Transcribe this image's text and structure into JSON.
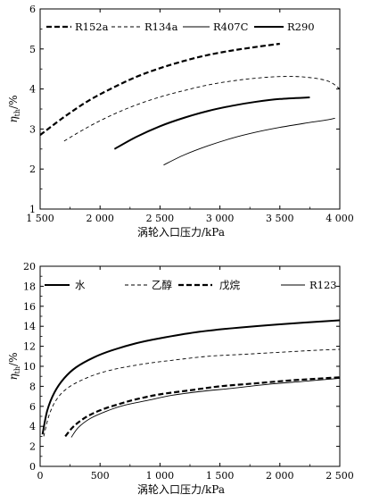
{
  "chart_data": [
    {
      "type": "line",
      "xlabel": "涡轮入口压力/kPa",
      "ylabel": {
        "symbol": "η",
        "subscript": "th",
        "unit": "/%"
      },
      "xlim": [
        1500,
        4000
      ],
      "ylim": [
        1,
        6
      ],
      "xticks": [
        1500,
        2000,
        2500,
        3000,
        3500,
        4000
      ],
      "xtick_labels": [
        "1 500",
        "2 000",
        "2 500",
        "3 000",
        "3 500",
        "4 000"
      ],
      "yticks": [
        1,
        2,
        3,
        4,
        5,
        6
      ],
      "ytick_labels": [
        "1",
        "2",
        "3",
        "4",
        "5",
        "6"
      ],
      "legend_position": "top",
      "series": [
        {
          "name": "R152a",
          "style": "dashed-bold",
          "x": [
            1500,
            1700,
            1900,
            2100,
            2300,
            2500,
            2700,
            2900,
            3100,
            3300,
            3500
          ],
          "y": [
            2.85,
            3.3,
            3.7,
            4.02,
            4.3,
            4.52,
            4.7,
            4.85,
            4.96,
            5.05,
            5.13
          ]
        },
        {
          "name": "R134a",
          "style": "dashed-thin",
          "x": [
            1700,
            1900,
            2100,
            2300,
            2500,
            2700,
            2900,
            3100,
            3300,
            3500,
            3700,
            3900,
            4000
          ],
          "y": [
            2.7,
            3.05,
            3.35,
            3.6,
            3.8,
            3.96,
            4.1,
            4.2,
            4.27,
            4.31,
            4.3,
            4.2,
            4.0
          ]
        },
        {
          "name": "R407C",
          "style": "solid-thin",
          "x": [
            2530,
            2700,
            2900,
            3100,
            3300,
            3500,
            3700,
            3900,
            3960
          ],
          "y": [
            2.1,
            2.35,
            2.58,
            2.77,
            2.92,
            3.04,
            3.14,
            3.23,
            3.27
          ]
        },
        {
          "name": "R290",
          "style": "solid-bold",
          "x": [
            2120,
            2300,
            2500,
            2700,
            2900,
            3100,
            3300,
            3500,
            3750
          ],
          "y": [
            2.5,
            2.8,
            3.07,
            3.28,
            3.45,
            3.58,
            3.68,
            3.75,
            3.79
          ]
        }
      ]
    },
    {
      "type": "line",
      "xlabel": "涡轮入口压力/kPa",
      "ylabel": {
        "symbol": "η",
        "subscript": "th",
        "unit": "/%"
      },
      "xlim": [
        0,
        2500
      ],
      "ylim": [
        0,
        20
      ],
      "xticks": [
        0,
        500,
        1000,
        1500,
        2000,
        2500
      ],
      "xtick_labels": [
        "0",
        "500",
        "1 000",
        "1 500",
        "2 000",
        "2 500"
      ],
      "yticks": [
        0,
        2,
        4,
        6,
        8,
        10,
        12,
        14,
        16,
        18,
        20
      ],
      "ytick_labels": [
        "0",
        "2",
        "4",
        "6",
        "8",
        "10",
        "12",
        "14",
        "16",
        "18",
        "20"
      ],
      "legend_position": "top",
      "series": [
        {
          "name": "水",
          "style": "solid-bold",
          "x": [
            20,
            60,
            120,
            200,
            300,
            450,
            600,
            800,
            1000,
            1300,
            1600,
            2000,
            2500
          ],
          "y": [
            3.2,
            5.6,
            7.4,
            8.8,
            9.9,
            10.9,
            11.6,
            12.3,
            12.8,
            13.4,
            13.8,
            14.2,
            14.6
          ]
        },
        {
          "name": "乙醇",
          "style": "dashed-thin",
          "x": [
            30,
            80,
            150,
            250,
            400,
            550,
            700,
            900,
            1100,
            1400,
            1700,
            2000,
            2300,
            2500
          ],
          "y": [
            3.0,
            5.3,
            6.9,
            8.0,
            8.9,
            9.5,
            9.9,
            10.3,
            10.6,
            11.0,
            11.2,
            11.4,
            11.6,
            11.7
          ]
        },
        {
          "name": "戊烷",
          "style": "dashed-bold",
          "x": [
            210,
            280,
            380,
            500,
            650,
            800,
            1000,
            1250,
            1500,
            1800,
            2100,
            2500
          ],
          "y": [
            3.0,
            4.0,
            4.9,
            5.6,
            6.2,
            6.7,
            7.2,
            7.6,
            8.0,
            8.3,
            8.6,
            8.9
          ]
        },
        {
          "name": "R123",
          "style": "solid-thin",
          "x": [
            260,
            320,
            420,
            550,
            700,
            900,
            1100,
            1350,
            1600,
            1900,
            2200,
            2500
          ],
          "y": [
            2.9,
            3.9,
            4.8,
            5.5,
            6.1,
            6.6,
            7.1,
            7.5,
            7.8,
            8.2,
            8.5,
            8.8
          ]
        }
      ]
    }
  ]
}
